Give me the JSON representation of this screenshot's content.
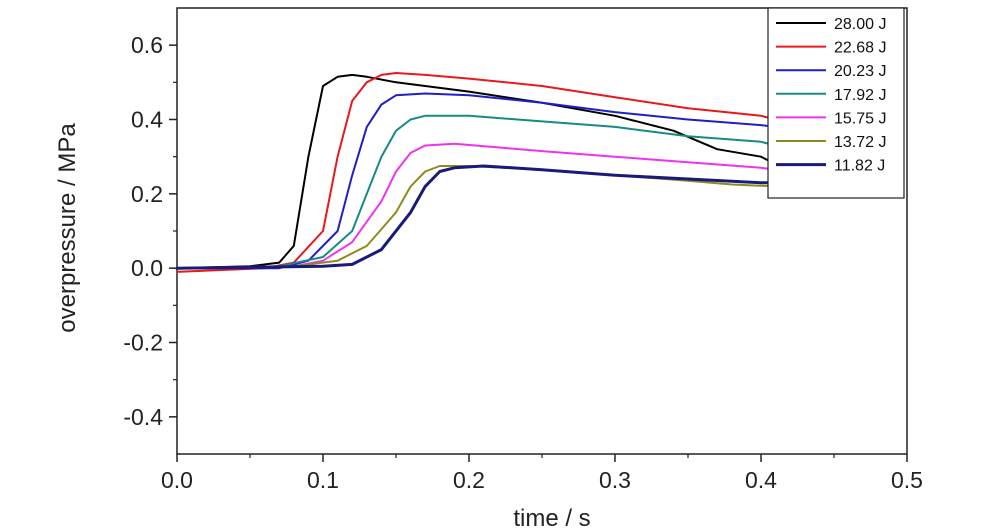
{
  "chart_data": {
    "type": "line",
    "title": "",
    "xlabel": "time / s",
    "ylabel": "overpressure / MPa",
    "xlim": [
      0.0,
      0.5
    ],
    "ylim": [
      -0.5,
      0.7
    ],
    "x_ticks": [
      0.0,
      0.1,
      0.2,
      0.3,
      0.4,
      0.5
    ],
    "x_tick_labels": [
      "0.0",
      "0.1",
      "0.2",
      "0.3",
      "0.4",
      "0.5"
    ],
    "y_ticks": [
      -0.4,
      -0.2,
      0.0,
      0.2,
      0.4,
      0.6
    ],
    "y_tick_labels": [
      "-0.4",
      "-0.2",
      "0.0",
      "0.2",
      "0.4",
      "0.6"
    ],
    "grid": false,
    "legend_position": "top-right",
    "series": [
      {
        "name": "28.00 J",
        "color": "#000000",
        "stroke_width": 2,
        "points": [
          [
            0,
            0.0
          ],
          [
            0.05,
            0.005
          ],
          [
            0.07,
            0.015
          ],
          [
            0.08,
            0.06
          ],
          [
            0.09,
            0.3
          ],
          [
            0.1,
            0.49
          ],
          [
            0.11,
            0.515
          ],
          [
            0.12,
            0.52
          ],
          [
            0.13,
            0.515
          ],
          [
            0.15,
            0.5
          ],
          [
            0.18,
            0.485
          ],
          [
            0.2,
            0.475
          ],
          [
            0.25,
            0.445
          ],
          [
            0.3,
            0.41
          ],
          [
            0.34,
            0.37
          ],
          [
            0.37,
            0.32
          ],
          [
            0.4,
            0.3
          ],
          [
            0.41,
            0.28
          ]
        ]
      },
      {
        "name": "22.68 J",
        "color": "#e8191d",
        "stroke_width": 2,
        "points": [
          [
            0,
            -0.01
          ],
          [
            0.06,
            0.0
          ],
          [
            0.08,
            0.015
          ],
          [
            0.1,
            0.1
          ],
          [
            0.11,
            0.3
          ],
          [
            0.12,
            0.45
          ],
          [
            0.13,
            0.5
          ],
          [
            0.14,
            0.52
          ],
          [
            0.15,
            0.525
          ],
          [
            0.17,
            0.52
          ],
          [
            0.2,
            0.51
          ],
          [
            0.25,
            0.49
          ],
          [
            0.3,
            0.46
          ],
          [
            0.35,
            0.43
          ],
          [
            0.4,
            0.41
          ],
          [
            0.41,
            0.4
          ]
        ]
      },
      {
        "name": "20.23 J",
        "color": "#1f1fc8",
        "stroke_width": 2,
        "points": [
          [
            0,
            0.0
          ],
          [
            0.07,
            0.0
          ],
          [
            0.09,
            0.02
          ],
          [
            0.11,
            0.1
          ],
          [
            0.12,
            0.25
          ],
          [
            0.13,
            0.38
          ],
          [
            0.14,
            0.44
          ],
          [
            0.15,
            0.465
          ],
          [
            0.17,
            0.47
          ],
          [
            0.2,
            0.465
          ],
          [
            0.25,
            0.445
          ],
          [
            0.3,
            0.42
          ],
          [
            0.35,
            0.4
          ],
          [
            0.4,
            0.385
          ],
          [
            0.41,
            0.38
          ]
        ]
      },
      {
        "name": "17.92 J",
        "color": "#188a86",
        "stroke_width": 2,
        "points": [
          [
            0,
            0.0
          ],
          [
            0.07,
            0.005
          ],
          [
            0.1,
            0.03
          ],
          [
            0.12,
            0.1
          ],
          [
            0.13,
            0.2
          ],
          [
            0.14,
            0.3
          ],
          [
            0.15,
            0.37
          ],
          [
            0.16,
            0.4
          ],
          [
            0.17,
            0.41
          ],
          [
            0.2,
            0.41
          ],
          [
            0.25,
            0.395
          ],
          [
            0.3,
            0.38
          ],
          [
            0.35,
            0.355
          ],
          [
            0.4,
            0.34
          ],
          [
            0.41,
            0.33
          ]
        ]
      },
      {
        "name": "15.75 J",
        "color": "#ee34ee",
        "stroke_width": 2,
        "points": [
          [
            0,
            0.0
          ],
          [
            0.08,
            0.005
          ],
          [
            0.1,
            0.02
          ],
          [
            0.12,
            0.07
          ],
          [
            0.14,
            0.18
          ],
          [
            0.15,
            0.26
          ],
          [
            0.16,
            0.31
          ],
          [
            0.17,
            0.33
          ],
          [
            0.19,
            0.335
          ],
          [
            0.22,
            0.325
          ],
          [
            0.25,
            0.315
          ],
          [
            0.3,
            0.3
          ],
          [
            0.35,
            0.285
          ],
          [
            0.4,
            0.27
          ],
          [
            0.41,
            0.265
          ]
        ]
      },
      {
        "name": "13.72 J",
        "color": "#8e8b1e",
        "stroke_width": 2,
        "points": [
          [
            0,
            0.0
          ],
          [
            0.08,
            0.005
          ],
          [
            0.11,
            0.02
          ],
          [
            0.13,
            0.06
          ],
          [
            0.15,
            0.15
          ],
          [
            0.16,
            0.22
          ],
          [
            0.17,
            0.26
          ],
          [
            0.18,
            0.275
          ],
          [
            0.2,
            0.275
          ],
          [
            0.25,
            0.265
          ],
          [
            0.3,
            0.25
          ],
          [
            0.35,
            0.235
          ],
          [
            0.38,
            0.225
          ],
          [
            0.41,
            0.22
          ]
        ]
      },
      {
        "name": "11.82 J",
        "color": "#1a1a7a",
        "stroke_width": 3,
        "points": [
          [
            0,
            0.0
          ],
          [
            0.1,
            0.005
          ],
          [
            0.12,
            0.01
          ],
          [
            0.14,
            0.05
          ],
          [
            0.16,
            0.15
          ],
          [
            0.17,
            0.22
          ],
          [
            0.18,
            0.26
          ],
          [
            0.19,
            0.27
          ],
          [
            0.21,
            0.275
          ],
          [
            0.25,
            0.265
          ],
          [
            0.3,
            0.25
          ],
          [
            0.35,
            0.24
          ],
          [
            0.4,
            0.23
          ],
          [
            0.41,
            0.23
          ]
        ]
      }
    ]
  }
}
